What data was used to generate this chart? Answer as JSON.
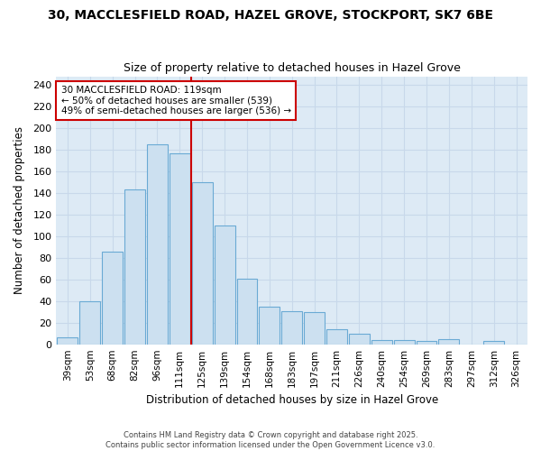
{
  "title1": "30, MACCLESFIELD ROAD, HAZEL GROVE, STOCKPORT, SK7 6BE",
  "title2": "Size of property relative to detached houses in Hazel Grove",
  "xlabel": "Distribution of detached houses by size in Hazel Grove",
  "ylabel": "Number of detached properties",
  "categories": [
    "39sqm",
    "53sqm",
    "68sqm",
    "82sqm",
    "96sqm",
    "111sqm",
    "125sqm",
    "139sqm",
    "154sqm",
    "168sqm",
    "183sqm",
    "197sqm",
    "211sqm",
    "226sqm",
    "240sqm",
    "254sqm",
    "269sqm",
    "283sqm",
    "297sqm",
    "312sqm",
    "326sqm"
  ],
  "values": [
    6,
    40,
    86,
    143,
    185,
    177,
    150,
    110,
    61,
    35,
    31,
    30,
    14,
    10,
    4,
    4,
    3,
    5,
    0,
    3,
    0
  ],
  "bar_color": "#cce0f0",
  "bar_edge_color": "#6aaad4",
  "grid_color": "#c8d8ea",
  "plot_bg_color": "#ddeaf5",
  "fig_bg_color": "#ffffff",
  "vline_x": 5.5,
  "vline_color": "#cc0000",
  "annotation_text": "30 MACCLESFIELD ROAD: 119sqm\n← 50% of detached houses are smaller (539)\n49% of semi-detached houses are larger (536) →",
  "annotation_box_color": "white",
  "annotation_box_edge": "#cc0000",
  "footer1": "Contains HM Land Registry data © Crown copyright and database right 2025.",
  "footer2": "Contains public sector information licensed under the Open Government Licence v3.0.",
  "ylim": [
    0,
    248
  ],
  "yticks": [
    0,
    20,
    40,
    60,
    80,
    100,
    120,
    140,
    160,
    180,
    200,
    220,
    240
  ]
}
